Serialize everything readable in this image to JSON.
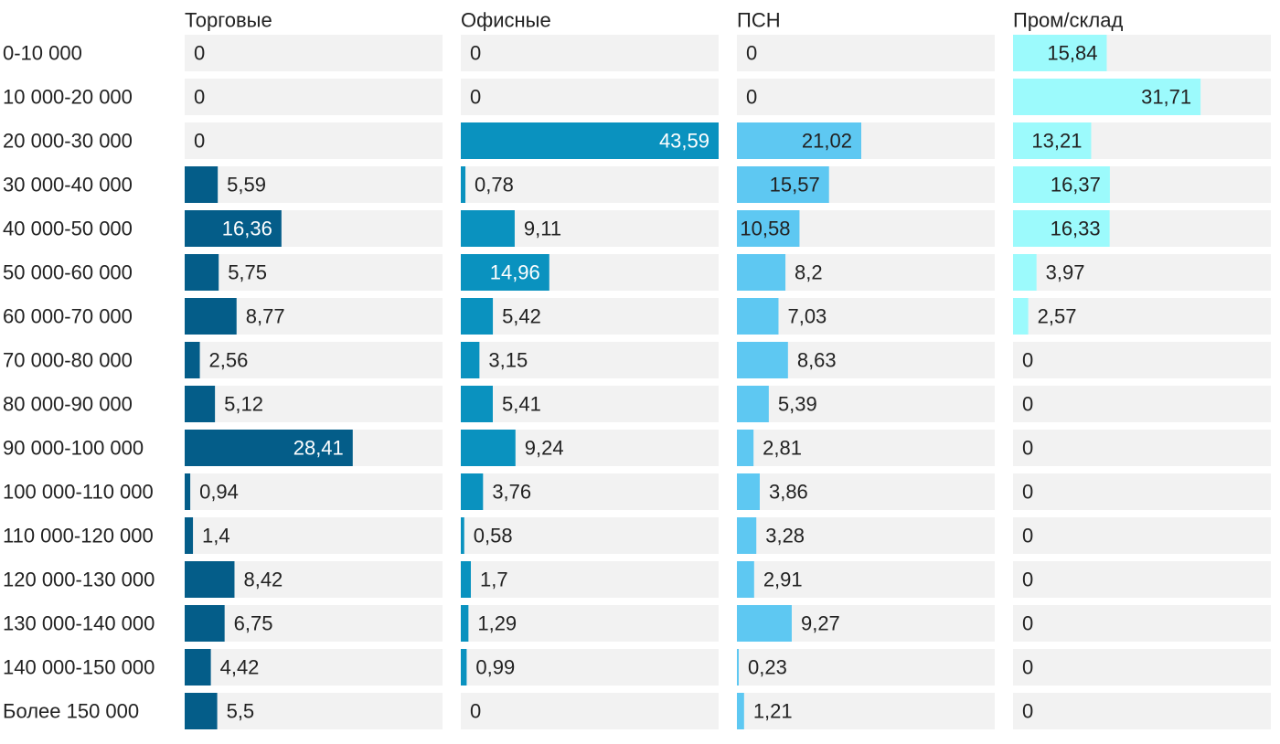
{
  "chart_data": {
    "type": "bar",
    "orientation": "horizontal",
    "layout": "small-multiples",
    "categories": [
      "0-10 000",
      "10 000-20 000",
      "20 000-30 000",
      "30 000-40 000",
      "40 000-50 000",
      "50 000-60 000",
      "60 000-70 000",
      "70 000-80 000",
      "80 000-90 000",
      "90 000-100 000",
      "100 000-110 000",
      "110 000-120 000",
      "120 000-130 000",
      "130 000-140 000",
      "140 000-150 000",
      "Более 150 000"
    ],
    "series": [
      {
        "name": "Торговые",
        "color": "#045d89",
        "values": [
          0,
          0,
          0,
          5.59,
          16.36,
          5.75,
          8.77,
          2.56,
          5.12,
          28.41,
          0.94,
          1.4,
          8.42,
          6.75,
          4.42,
          5.5
        ],
        "labels": [
          "0",
          "0",
          "0",
          "5,59",
          "16,36",
          "5,75",
          "8,77",
          "2,56",
          "5,12",
          "28,41",
          "0,94",
          "1,4",
          "8,42",
          "6,75",
          "4,42",
          "5,5"
        ]
      },
      {
        "name": "Офисные",
        "color": "#0a92bf",
        "values": [
          0,
          0,
          43.59,
          0.78,
          9.11,
          14.96,
          5.42,
          3.15,
          5.41,
          9.24,
          3.76,
          0.58,
          1.7,
          1.29,
          0.99,
          0
        ],
        "labels": [
          "0",
          "0",
          "43,59",
          "0,78",
          "9,11",
          "14,96",
          "5,42",
          "3,15",
          "5,41",
          "9,24",
          "3,76",
          "0,58",
          "1,7",
          "1,29",
          "0,99",
          "0"
        ]
      },
      {
        "name": "ПСН",
        "color": "#5ec8f2",
        "values": [
          0,
          0,
          21.02,
          15.57,
          10.58,
          8.2,
          7.03,
          8.63,
          5.39,
          2.81,
          3.86,
          3.28,
          2.91,
          9.27,
          0.23,
          1.21
        ],
        "labels": [
          "0",
          "0",
          "21,02",
          "15,57",
          "10,58",
          "8,2",
          "7,03",
          "8,63",
          "5,39",
          "2,81",
          "3,86",
          "3,28",
          "2,91",
          "9,27",
          "0,23",
          "1,21"
        ]
      },
      {
        "name": "Пром/склад",
        "color": "#9cfafc",
        "values": [
          15.84,
          31.71,
          13.21,
          16.37,
          16.33,
          3.97,
          2.57,
          0,
          0,
          0,
          0,
          0,
          0,
          0,
          0,
          0
        ],
        "labels": [
          "15,84",
          "31,71",
          "13,21",
          "16,37",
          "16,33",
          "3,97",
          "2,57",
          "0",
          "0",
          "0",
          "0",
          "0",
          "0",
          "0",
          "0",
          "0"
        ]
      }
    ],
    "panel_background": "#f2f2f2",
    "light_text_color": "#ffffff",
    "dark_text_color": "#222222"
  }
}
